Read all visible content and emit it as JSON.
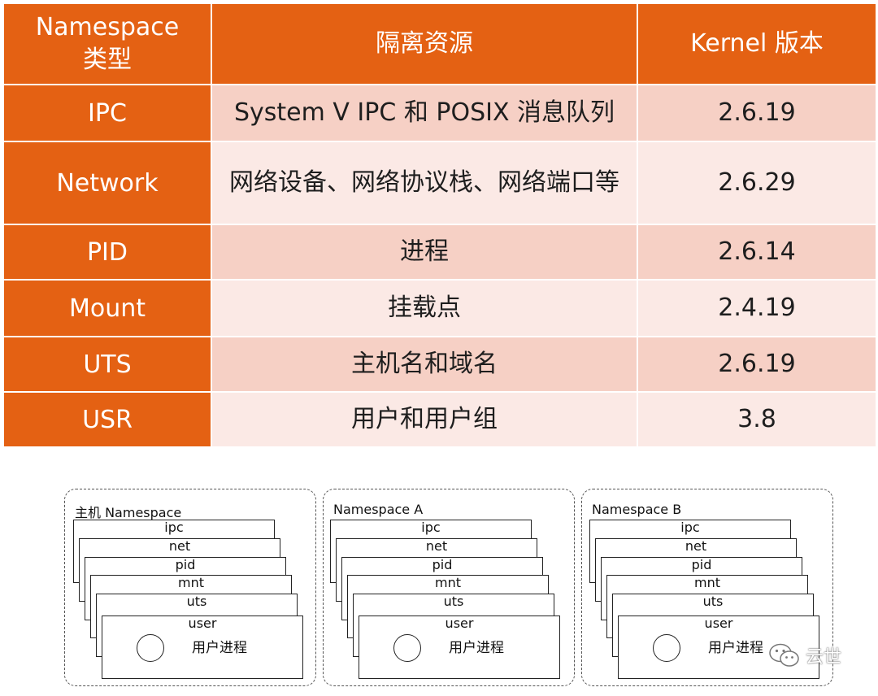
{
  "table": {
    "headers": [
      "Namespace 类型",
      "隔离资源",
      "Kernel 版本"
    ],
    "rows": [
      {
        "type": "IPC",
        "resource": "System V IPC 和 POSIX 消息队列",
        "version": "2.6.19"
      },
      {
        "type": "Network",
        "resource": "网络设备、网络协议栈、网络端口等",
        "version": "2.6.29"
      },
      {
        "type": "PID",
        "resource": "进程",
        "version": "2.6.14"
      },
      {
        "type": "Mount",
        "resource": "挂载点",
        "version": "2.4.19"
      },
      {
        "type": "UTS",
        "resource": "主机名和域名",
        "version": "2.6.19"
      },
      {
        "type": "USR",
        "resource": "用户和用户组",
        "version": "3.8"
      }
    ]
  },
  "diagram": {
    "namespaces": [
      {
        "title": "主机 Namespace"
      },
      {
        "title": "Namespace A"
      },
      {
        "title": "Namespace B"
      }
    ],
    "layers": [
      "ipc",
      "net",
      "pid",
      "mnt",
      "uts",
      "user"
    ],
    "process_label": "用户进程"
  },
  "watermark": {
    "text": "云世",
    "icon": "wechat-icon"
  },
  "colors": {
    "header": "#e46113",
    "row_odd": "#f6d0c5",
    "row_even": "#fbe9e5"
  }
}
